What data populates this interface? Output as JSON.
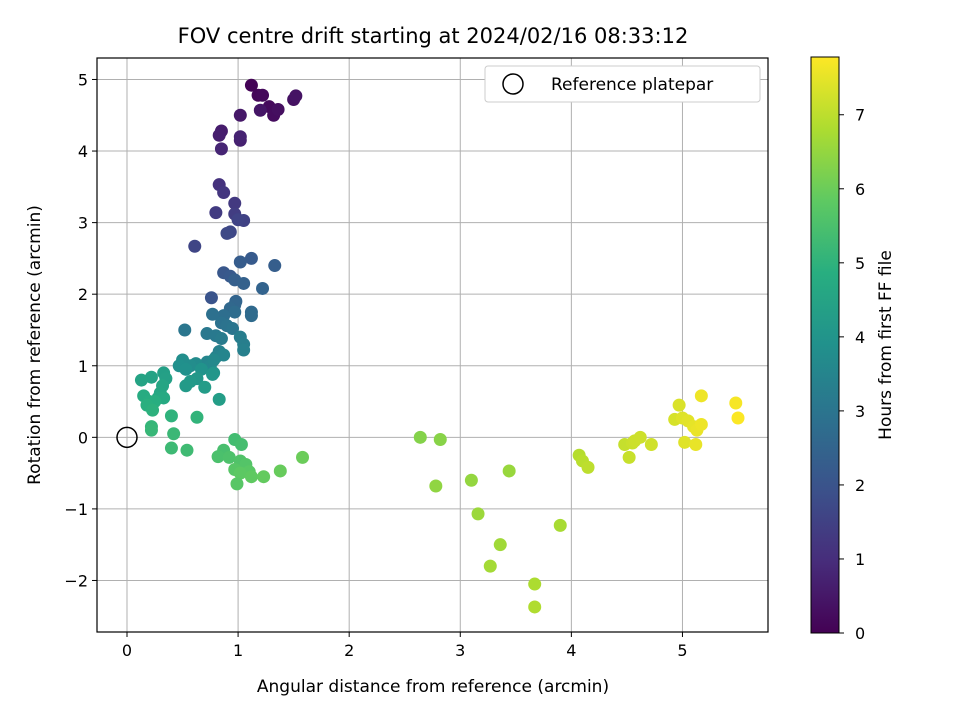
{
  "chart_data": {
    "type": "scatter",
    "title": "FOV centre drift starting at 2024/02/16 08:33:12",
    "xlabel": "Angular distance from reference (arcmin)",
    "ylabel": "Rotation from reference (arcmin)",
    "xlim": [
      -0.27,
      5.77
    ],
    "ylim": [
      -2.72,
      5.3
    ],
    "xticks": [
      0,
      1,
      2,
      3,
      4,
      5
    ],
    "yticks": [
      -2,
      -1,
      0,
      1,
      2,
      3,
      4,
      5
    ],
    "grid": true,
    "legend": {
      "position": "top-right",
      "entries": [
        {
          "label": "Reference platepar",
          "marker": "open-circle"
        }
      ]
    },
    "reference_point": {
      "x": 0,
      "y": 0
    },
    "colorbar": {
      "label": "Hours from first FF file",
      "colormap": "viridis",
      "range": [
        0,
        7.78
      ],
      "ticks": [
        0,
        1,
        2,
        3,
        4,
        5,
        6,
        7
      ]
    },
    "points": [
      {
        "x": 1.12,
        "y": 4.92,
        "c": 0.05
      },
      {
        "x": 1.18,
        "y": 4.78,
        "c": 0.1
      },
      {
        "x": 1.22,
        "y": 4.78,
        "c": 0.15
      },
      {
        "x": 1.28,
        "y": 4.62,
        "c": 0.2
      },
      {
        "x": 1.32,
        "y": 4.5,
        "c": 0.25
      },
      {
        "x": 1.36,
        "y": 4.58,
        "c": 0.3
      },
      {
        "x": 1.5,
        "y": 4.72,
        "c": 0.35
      },
      {
        "x": 1.52,
        "y": 4.77,
        "c": 0.4
      },
      {
        "x": 1.2,
        "y": 4.57,
        "c": 0.45
      },
      {
        "x": 1.02,
        "y": 4.5,
        "c": 0.5
      },
      {
        "x": 0.85,
        "y": 4.28,
        "c": 0.6
      },
      {
        "x": 0.83,
        "y": 4.22,
        "c": 0.65
      },
      {
        "x": 1.02,
        "y": 4.15,
        "c": 0.7
      },
      {
        "x": 1.02,
        "y": 4.2,
        "c": 0.75
      },
      {
        "x": 0.85,
        "y": 4.03,
        "c": 0.8
      },
      {
        "x": 0.83,
        "y": 3.53,
        "c": 1.1
      },
      {
        "x": 0.87,
        "y": 3.42,
        "c": 1.2
      },
      {
        "x": 0.97,
        "y": 3.27,
        "c": 1.3
      },
      {
        "x": 0.8,
        "y": 3.14,
        "c": 1.35
      },
      {
        "x": 0.97,
        "y": 3.12,
        "c": 1.4
      },
      {
        "x": 1.05,
        "y": 3.03,
        "c": 1.5
      },
      {
        "x": 1.0,
        "y": 3.04,
        "c": 1.55
      },
      {
        "x": 0.93,
        "y": 2.87,
        "c": 1.65
      },
      {
        "x": 0.9,
        "y": 2.85,
        "c": 1.7
      },
      {
        "x": 0.61,
        "y": 2.67,
        "c": 1.6
      },
      {
        "x": 1.12,
        "y": 2.5,
        "c": 2.2
      },
      {
        "x": 1.02,
        "y": 2.45,
        "c": 2.25
      },
      {
        "x": 1.33,
        "y": 2.4,
        "c": 2.3
      },
      {
        "x": 0.87,
        "y": 2.3,
        "c": 2.1
      },
      {
        "x": 0.93,
        "y": 2.25,
        "c": 2.15
      },
      {
        "x": 0.97,
        "y": 2.2,
        "c": 2.35
      },
      {
        "x": 1.05,
        "y": 2.15,
        "c": 2.4
      },
      {
        "x": 1.22,
        "y": 2.08,
        "c": 2.45
      },
      {
        "x": 0.76,
        "y": 1.95,
        "c": 2.0
      },
      {
        "x": 0.98,
        "y": 1.9,
        "c": 2.5
      },
      {
        "x": 0.97,
        "y": 1.85,
        "c": 2.55
      },
      {
        "x": 0.93,
        "y": 1.8,
        "c": 2.6
      },
      {
        "x": 1.12,
        "y": 1.75,
        "c": 2.65
      },
      {
        "x": 1.12,
        "y": 1.7,
        "c": 2.7
      },
      {
        "x": 0.97,
        "y": 1.75,
        "c": 2.75
      },
      {
        "x": 0.87,
        "y": 1.7,
        "c": 2.8
      },
      {
        "x": 0.77,
        "y": 1.72,
        "c": 2.85
      },
      {
        "x": 0.85,
        "y": 1.6,
        "c": 2.9
      },
      {
        "x": 0.9,
        "y": 1.56,
        "c": 2.95
      },
      {
        "x": 0.95,
        "y": 1.52,
        "c": 3.0
      },
      {
        "x": 0.52,
        "y": 1.5,
        "c": 3.05
      },
      {
        "x": 0.72,
        "y": 1.45,
        "c": 3.1
      },
      {
        "x": 0.8,
        "y": 1.42,
        "c": 3.15
      },
      {
        "x": 0.85,
        "y": 1.38,
        "c": 3.2
      },
      {
        "x": 1.02,
        "y": 1.4,
        "c": 3.25
      },
      {
        "x": 1.05,
        "y": 1.3,
        "c": 3.3
      },
      {
        "x": 1.05,
        "y": 1.22,
        "c": 3.35
      },
      {
        "x": 0.83,
        "y": 1.2,
        "c": 3.4
      },
      {
        "x": 0.8,
        "y": 1.12,
        "c": 3.45
      },
      {
        "x": 0.87,
        "y": 1.15,
        "c": 3.5
      },
      {
        "x": 0.72,
        "y": 1.05,
        "c": 3.55
      },
      {
        "x": 0.75,
        "y": 1.0,
        "c": 3.6
      },
      {
        "x": 0.78,
        "y": 1.08,
        "c": 3.65
      },
      {
        "x": 0.62,
        "y": 1.03,
        "c": 3.7
      },
      {
        "x": 0.57,
        "y": 1.0,
        "c": 3.75
      },
      {
        "x": 0.5,
        "y": 1.08,
        "c": 3.8
      },
      {
        "x": 0.47,
        "y": 1.0,
        "c": 3.85
      },
      {
        "x": 0.53,
        "y": 0.95,
        "c": 3.9
      },
      {
        "x": 0.67,
        "y": 0.95,
        "c": 3.95
      },
      {
        "x": 0.78,
        "y": 0.9,
        "c": 4.0
      },
      {
        "x": 0.77,
        "y": 0.88,
        "c": 4.05
      },
      {
        "x": 0.63,
        "y": 0.82,
        "c": 4.1
      },
      {
        "x": 0.57,
        "y": 0.78,
        "c": 4.15
      },
      {
        "x": 0.53,
        "y": 0.72,
        "c": 4.2
      },
      {
        "x": 0.7,
        "y": 0.7,
        "c": 4.25
      },
      {
        "x": 0.83,
        "y": 0.53,
        "c": 4.3
      },
      {
        "x": 0.33,
        "y": 0.9,
        "c": 4.35
      },
      {
        "x": 0.35,
        "y": 0.82,
        "c": 4.4
      },
      {
        "x": 0.22,
        "y": 0.84,
        "c": 4.45
      },
      {
        "x": 0.13,
        "y": 0.8,
        "c": 4.5
      },
      {
        "x": 0.32,
        "y": 0.72,
        "c": 4.55
      },
      {
        "x": 0.3,
        "y": 0.62,
        "c": 4.6
      },
      {
        "x": 0.28,
        "y": 0.55,
        "c": 4.65
      },
      {
        "x": 0.33,
        "y": 0.55,
        "c": 4.7
      },
      {
        "x": 0.15,
        "y": 0.58,
        "c": 4.75
      },
      {
        "x": 0.2,
        "y": 0.5,
        "c": 4.8
      },
      {
        "x": 0.25,
        "y": 0.5,
        "c": 4.85
      },
      {
        "x": 0.18,
        "y": 0.45,
        "c": 4.9
      },
      {
        "x": 0.23,
        "y": 0.38,
        "c": 4.95
      },
      {
        "x": 0.4,
        "y": 0.3,
        "c": 5.0
      },
      {
        "x": 0.63,
        "y": 0.28,
        "c": 5.05
      },
      {
        "x": 0.22,
        "y": 0.15,
        "c": 5.1
      },
      {
        "x": 0.22,
        "y": 0.1,
        "c": 5.15
      },
      {
        "x": 0.42,
        "y": 0.05,
        "c": 5.2
      },
      {
        "x": 0.4,
        "y": -0.15,
        "c": 5.25
      },
      {
        "x": 0.54,
        "y": -0.18,
        "c": 5.3
      },
      {
        "x": 0.97,
        "y": -0.03,
        "c": 5.35
      },
      {
        "x": 1.03,
        "y": -0.1,
        "c": 5.4
      },
      {
        "x": 0.87,
        "y": -0.18,
        "c": 5.45
      },
      {
        "x": 0.82,
        "y": -0.27,
        "c": 5.5
      },
      {
        "x": 0.92,
        "y": -0.28,
        "c": 5.55
      },
      {
        "x": 1.02,
        "y": -0.33,
        "c": 5.6
      },
      {
        "x": 1.07,
        "y": -0.38,
        "c": 5.65
      },
      {
        "x": 0.97,
        "y": -0.45,
        "c": 5.7
      },
      {
        "x": 1.1,
        "y": -0.48,
        "c": 5.75
      },
      {
        "x": 1.02,
        "y": -0.5,
        "c": 5.8
      },
      {
        "x": 1.12,
        "y": -0.55,
        "c": 5.85
      },
      {
        "x": 1.23,
        "y": -0.55,
        "c": 5.9
      },
      {
        "x": 1.38,
        "y": -0.47,
        "c": 5.95
      },
      {
        "x": 1.58,
        "y": -0.28,
        "c": 6.0
      },
      {
        "x": 0.99,
        "y": -0.65,
        "c": 5.72
      },
      {
        "x": 2.64,
        "y": 0.0,
        "c": 6.3
      },
      {
        "x": 2.82,
        "y": -0.03,
        "c": 6.35
      },
      {
        "x": 2.78,
        "y": -0.68,
        "c": 6.45
      },
      {
        "x": 3.1,
        "y": -0.6,
        "c": 6.5
      },
      {
        "x": 3.44,
        "y": -0.47,
        "c": 6.55
      },
      {
        "x": 3.16,
        "y": -1.07,
        "c": 6.6
      },
      {
        "x": 3.36,
        "y": -1.5,
        "c": 6.65
      },
      {
        "x": 3.27,
        "y": -1.8,
        "c": 6.7
      },
      {
        "x": 3.9,
        "y": -1.23,
        "c": 6.75
      },
      {
        "x": 3.67,
        "y": -2.05,
        "c": 6.8
      },
      {
        "x": 3.67,
        "y": -2.37,
        "c": 6.85
      },
      {
        "x": 4.07,
        "y": -0.25,
        "c": 6.9
      },
      {
        "x": 4.1,
        "y": -0.33,
        "c": 6.95
      },
      {
        "x": 4.15,
        "y": -0.42,
        "c": 7.0
      },
      {
        "x": 4.48,
        "y": -0.1,
        "c": 7.1
      },
      {
        "x": 4.52,
        "y": -0.28,
        "c": 7.12
      },
      {
        "x": 4.55,
        "y": -0.08,
        "c": 7.15
      },
      {
        "x": 4.57,
        "y": -0.05,
        "c": 7.18
      },
      {
        "x": 4.62,
        "y": 0.0,
        "c": 7.2
      },
      {
        "x": 4.72,
        "y": -0.1,
        "c": 7.22
      },
      {
        "x": 4.93,
        "y": 0.25,
        "c": 7.3
      },
      {
        "x": 4.97,
        "y": 0.45,
        "c": 7.35
      },
      {
        "x": 5.0,
        "y": 0.27,
        "c": 7.4
      },
      {
        "x": 5.02,
        "y": -0.07,
        "c": 7.42
      },
      {
        "x": 5.05,
        "y": 0.23,
        "c": 7.45
      },
      {
        "x": 5.1,
        "y": 0.15,
        "c": 7.5
      },
      {
        "x": 5.12,
        "y": -0.1,
        "c": 7.52
      },
      {
        "x": 5.13,
        "y": 0.1,
        "c": 7.55
      },
      {
        "x": 5.17,
        "y": 0.18,
        "c": 7.58
      },
      {
        "x": 5.17,
        "y": 0.58,
        "c": 7.6
      },
      {
        "x": 5.48,
        "y": 0.48,
        "c": 7.7
      },
      {
        "x": 5.5,
        "y": 0.27,
        "c": 7.75
      }
    ]
  }
}
